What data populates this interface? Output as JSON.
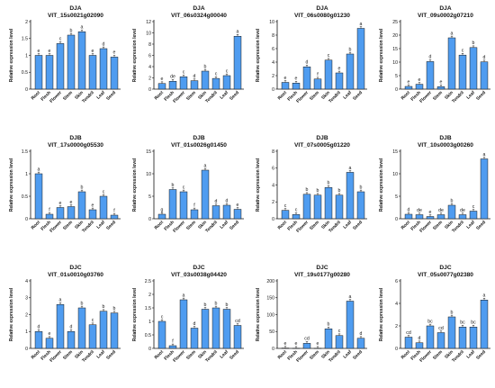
{
  "figure": {
    "y_axis_label": "Relative expression level",
    "bar_color": "#4f9cf0",
    "bar_edge_color": "#1a1a1a"
  },
  "chart_data": [
    {
      "type": "bar",
      "group": "DJA",
      "title": "VIT_15s0021g02090",
      "categories": [
        "Root",
        "Flesh",
        "Flower",
        "Stem",
        "Skin",
        "Tendril",
        "Leaf",
        "Seed"
      ],
      "values": [
        1.0,
        1.0,
        1.35,
        1.6,
        1.7,
        1.0,
        1.2,
        0.95
      ],
      "letters": [
        "e",
        "e",
        "c",
        "b",
        "a",
        "e",
        "d",
        "e"
      ],
      "ylabel": "Relative expression level",
      "ylim": [
        0,
        2.0
      ],
      "yticks": [
        0,
        0.5,
        1.0,
        1.5,
        2.0
      ],
      "grid": false
    },
    {
      "type": "bar",
      "group": "DJA",
      "title": "VIT_06s0324g00040",
      "categories": [
        "Root",
        "Flesh",
        "Flower",
        "Stem",
        "Skin",
        "Tendril",
        "Leaf",
        "Seed"
      ],
      "values": [
        1.0,
        1.4,
        2.2,
        1.5,
        3.2,
        1.9,
        2.4,
        9.4
      ],
      "letters": [
        "e",
        "de",
        "c",
        "d",
        "b",
        "c",
        "c",
        "a"
      ],
      "ylabel": "Relative expression level",
      "ylim": [
        0,
        12
      ],
      "yticks": [
        0,
        2,
        4,
        6,
        8,
        10,
        12
      ],
      "grid": false
    },
    {
      "type": "bar",
      "group": "DJA",
      "title": "VIT_06s0080g01230",
      "categories": [
        "Root",
        "Flesh",
        "Flower",
        "Stem",
        "Skin",
        "Tendril",
        "Leaf",
        "Seed"
      ],
      "values": [
        1.0,
        0.9,
        3.3,
        1.5,
        4.3,
        2.4,
        5.2,
        9.0
      ],
      "letters": [
        "e",
        "e",
        "d",
        "f",
        "c",
        "e",
        "b",
        "a"
      ],
      "ylabel": "Relative expression level",
      "ylim": [
        0,
        10
      ],
      "yticks": [
        0,
        2,
        4,
        6,
        8,
        10
      ],
      "grid": false
    },
    {
      "type": "bar",
      "group": "DJA",
      "title": "VIT_09s0002g07210",
      "categories": [
        "Root",
        "Flesh",
        "Flower",
        "Stem",
        "Skin",
        "Tendril",
        "Leaf",
        "Seed"
      ],
      "values": [
        1.0,
        1.8,
        10.2,
        0.9,
        19.0,
        12.6,
        15.4,
        10.1
      ],
      "letters": [
        "e",
        "e",
        "d",
        "e",
        "a",
        "c",
        "b",
        "d"
      ],
      "ylabel": "Relative expression level",
      "ylim": [
        0,
        25
      ],
      "yticks": [
        0,
        5,
        10,
        15,
        20,
        25
      ],
      "grid": false
    },
    {
      "type": "bar",
      "group": "DJB",
      "title": "VIT_17s0000g05530",
      "categories": [
        "Root",
        "Flesh",
        "Flower",
        "Stem",
        "Skin",
        "Tendril",
        "Leaf",
        "Seed"
      ],
      "values": [
        1.0,
        0.1,
        0.25,
        0.27,
        0.6,
        0.2,
        0.5,
        0.08
      ],
      "letters": [
        "a",
        "f",
        "e",
        "e",
        "b",
        "e",
        "c",
        "f"
      ],
      "ylabel": "Relative expression level",
      "ylim": [
        0,
        1.5
      ],
      "yticks": [
        0,
        0.5,
        1.0,
        1.5
      ],
      "grid": false
    },
    {
      "type": "bar",
      "group": "DJB",
      "title": "VIT_01s0026g01450",
      "categories": [
        "Root",
        "Flesh",
        "Flower",
        "Stem",
        "Skin",
        "Tendril",
        "Leaf",
        "Seed"
      ],
      "values": [
        1.0,
        6.5,
        6.0,
        2.0,
        10.8,
        2.9,
        3.0,
        2.1
      ],
      "letters": [
        "g",
        "b",
        "c",
        "f",
        "a",
        "d",
        "d",
        "e"
      ],
      "ylabel": "Relative expression level",
      "ylim": [
        0,
        15
      ],
      "yticks": [
        0,
        5,
        10,
        15
      ],
      "grid": false
    },
    {
      "type": "bar",
      "group": "DJB",
      "title": "VIT_07s0005g01220",
      "categories": [
        "Root",
        "Flesh",
        "Flower",
        "Stem",
        "Skin",
        "Tendril",
        "Leaf",
        "Seed"
      ],
      "values": [
        1.0,
        0.5,
        2.9,
        2.8,
        3.7,
        2.8,
        5.5,
        3.2
      ],
      "letters": [
        "c",
        "c",
        "b",
        "b",
        "b",
        "b",
        "a",
        "b"
      ],
      "ylabel": "Relative expression level",
      "ylim": [
        0,
        8
      ],
      "yticks": [
        0,
        2,
        4,
        6,
        8
      ],
      "grid": false
    },
    {
      "type": "bar",
      "group": "DJB",
      "title": "VIT_10s0003g00260",
      "categories": [
        "Root",
        "Flesh",
        "Flower",
        "Stem",
        "Skin",
        "Tendril",
        "Leaf",
        "Seed"
      ],
      "values": [
        1.0,
        0.9,
        0.5,
        0.9,
        3.0,
        0.9,
        1.7,
        13.3
      ],
      "letters": [
        "d",
        "de",
        "e",
        "de",
        "b",
        "de",
        "c",
        "a"
      ],
      "ylabel": "Relative expression level",
      "ylim": [
        0,
        15
      ],
      "yticks": [
        0,
        5,
        10,
        15
      ],
      "grid": false
    },
    {
      "type": "bar",
      "group": "DJC",
      "title": "VIT_01s0010g03760",
      "categories": [
        "Root",
        "Flesh",
        "Flower",
        "Stem",
        "Skin",
        "Tendril",
        "Leaf",
        "Seed"
      ],
      "values": [
        1.0,
        0.6,
        2.6,
        1.0,
        2.4,
        1.4,
        2.2,
        2.1
      ],
      "letters": [
        "d",
        "e",
        "a",
        "d",
        "b",
        "c",
        "b",
        "b"
      ],
      "ylabel": "Relative expression level",
      "ylim": [
        0,
        4
      ],
      "yticks": [
        0,
        1,
        2,
        3,
        4
      ],
      "grid": false
    },
    {
      "type": "bar",
      "group": "DJC",
      "title": "VIT_03s0038g04420",
      "categories": [
        "Root",
        "Flesh",
        "Flower",
        "Stem",
        "Skin",
        "Tendril",
        "Leaf",
        "Seed"
      ],
      "values": [
        1.0,
        0.1,
        1.8,
        0.75,
        1.45,
        1.5,
        1.45,
        0.85
      ],
      "letters": [
        "c",
        "f",
        "a",
        "d",
        "b",
        "b",
        "b",
        "cd"
      ],
      "ylabel": "Relative expression level",
      "ylim": [
        0,
        2.5
      ],
      "yticks": [
        0,
        0.5,
        1.0,
        1.5,
        2.0,
        2.5
      ],
      "grid": false
    },
    {
      "type": "bar",
      "group": "DJC",
      "title": "VIT_19s0177g00280",
      "categories": [
        "Root",
        "Flesh",
        "Flower",
        "Stem",
        "Skin",
        "Tendril",
        "Leaf",
        "Seed"
      ],
      "values": [
        1.0,
        0.5,
        15.0,
        0.5,
        58.0,
        38.0,
        140.0,
        30.0
      ],
      "letters": [
        "e",
        "e",
        "cd",
        "e",
        "b",
        "c",
        "a",
        "d"
      ],
      "ylabel": "Relative expression level",
      "ylim": [
        0,
        200
      ],
      "yticks": [
        0,
        50,
        100,
        150,
        200
      ],
      "grid": false
    },
    {
      "type": "bar",
      "group": "DJC",
      "title": "VIT_05s0077g02380",
      "categories": [
        "Root",
        "Flesh",
        "Flower",
        "Stem",
        "Skin",
        "Tendril",
        "Leaf",
        "Seed"
      ],
      "values": [
        1.0,
        0.5,
        2.0,
        1.4,
        2.8,
        1.9,
        1.9,
        4.3
      ],
      "letters": [
        "cd",
        "d",
        "bc",
        "cd",
        "b",
        "bc",
        "bc",
        "a"
      ],
      "ylabel": "Relative expression level",
      "ylim": [
        0,
        6
      ],
      "yticks": [
        0,
        2,
        4,
        6
      ],
      "grid": false
    }
  ]
}
